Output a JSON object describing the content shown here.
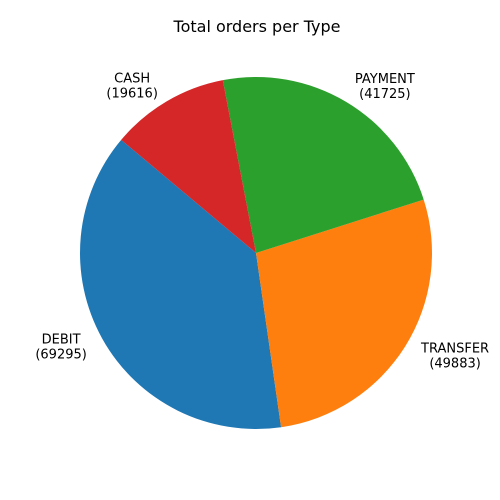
{
  "chart_data": {
    "type": "pie",
    "title": "Total orders per Type",
    "categories": [
      "DEBIT",
      "TRANSFER",
      "PAYMENT",
      "CASH"
    ],
    "values": [
      69295,
      49883,
      41725,
      19616
    ],
    "value_labels": [
      "(69295)",
      "(49883)",
      "(41725)",
      "(19616)"
    ],
    "colors": [
      "#1f77b4",
      "#ff7f0e",
      "#2ca02c",
      "#d62728"
    ],
    "start_angle_deg": 140,
    "direction": "counterclockwise",
    "legend": "none"
  }
}
